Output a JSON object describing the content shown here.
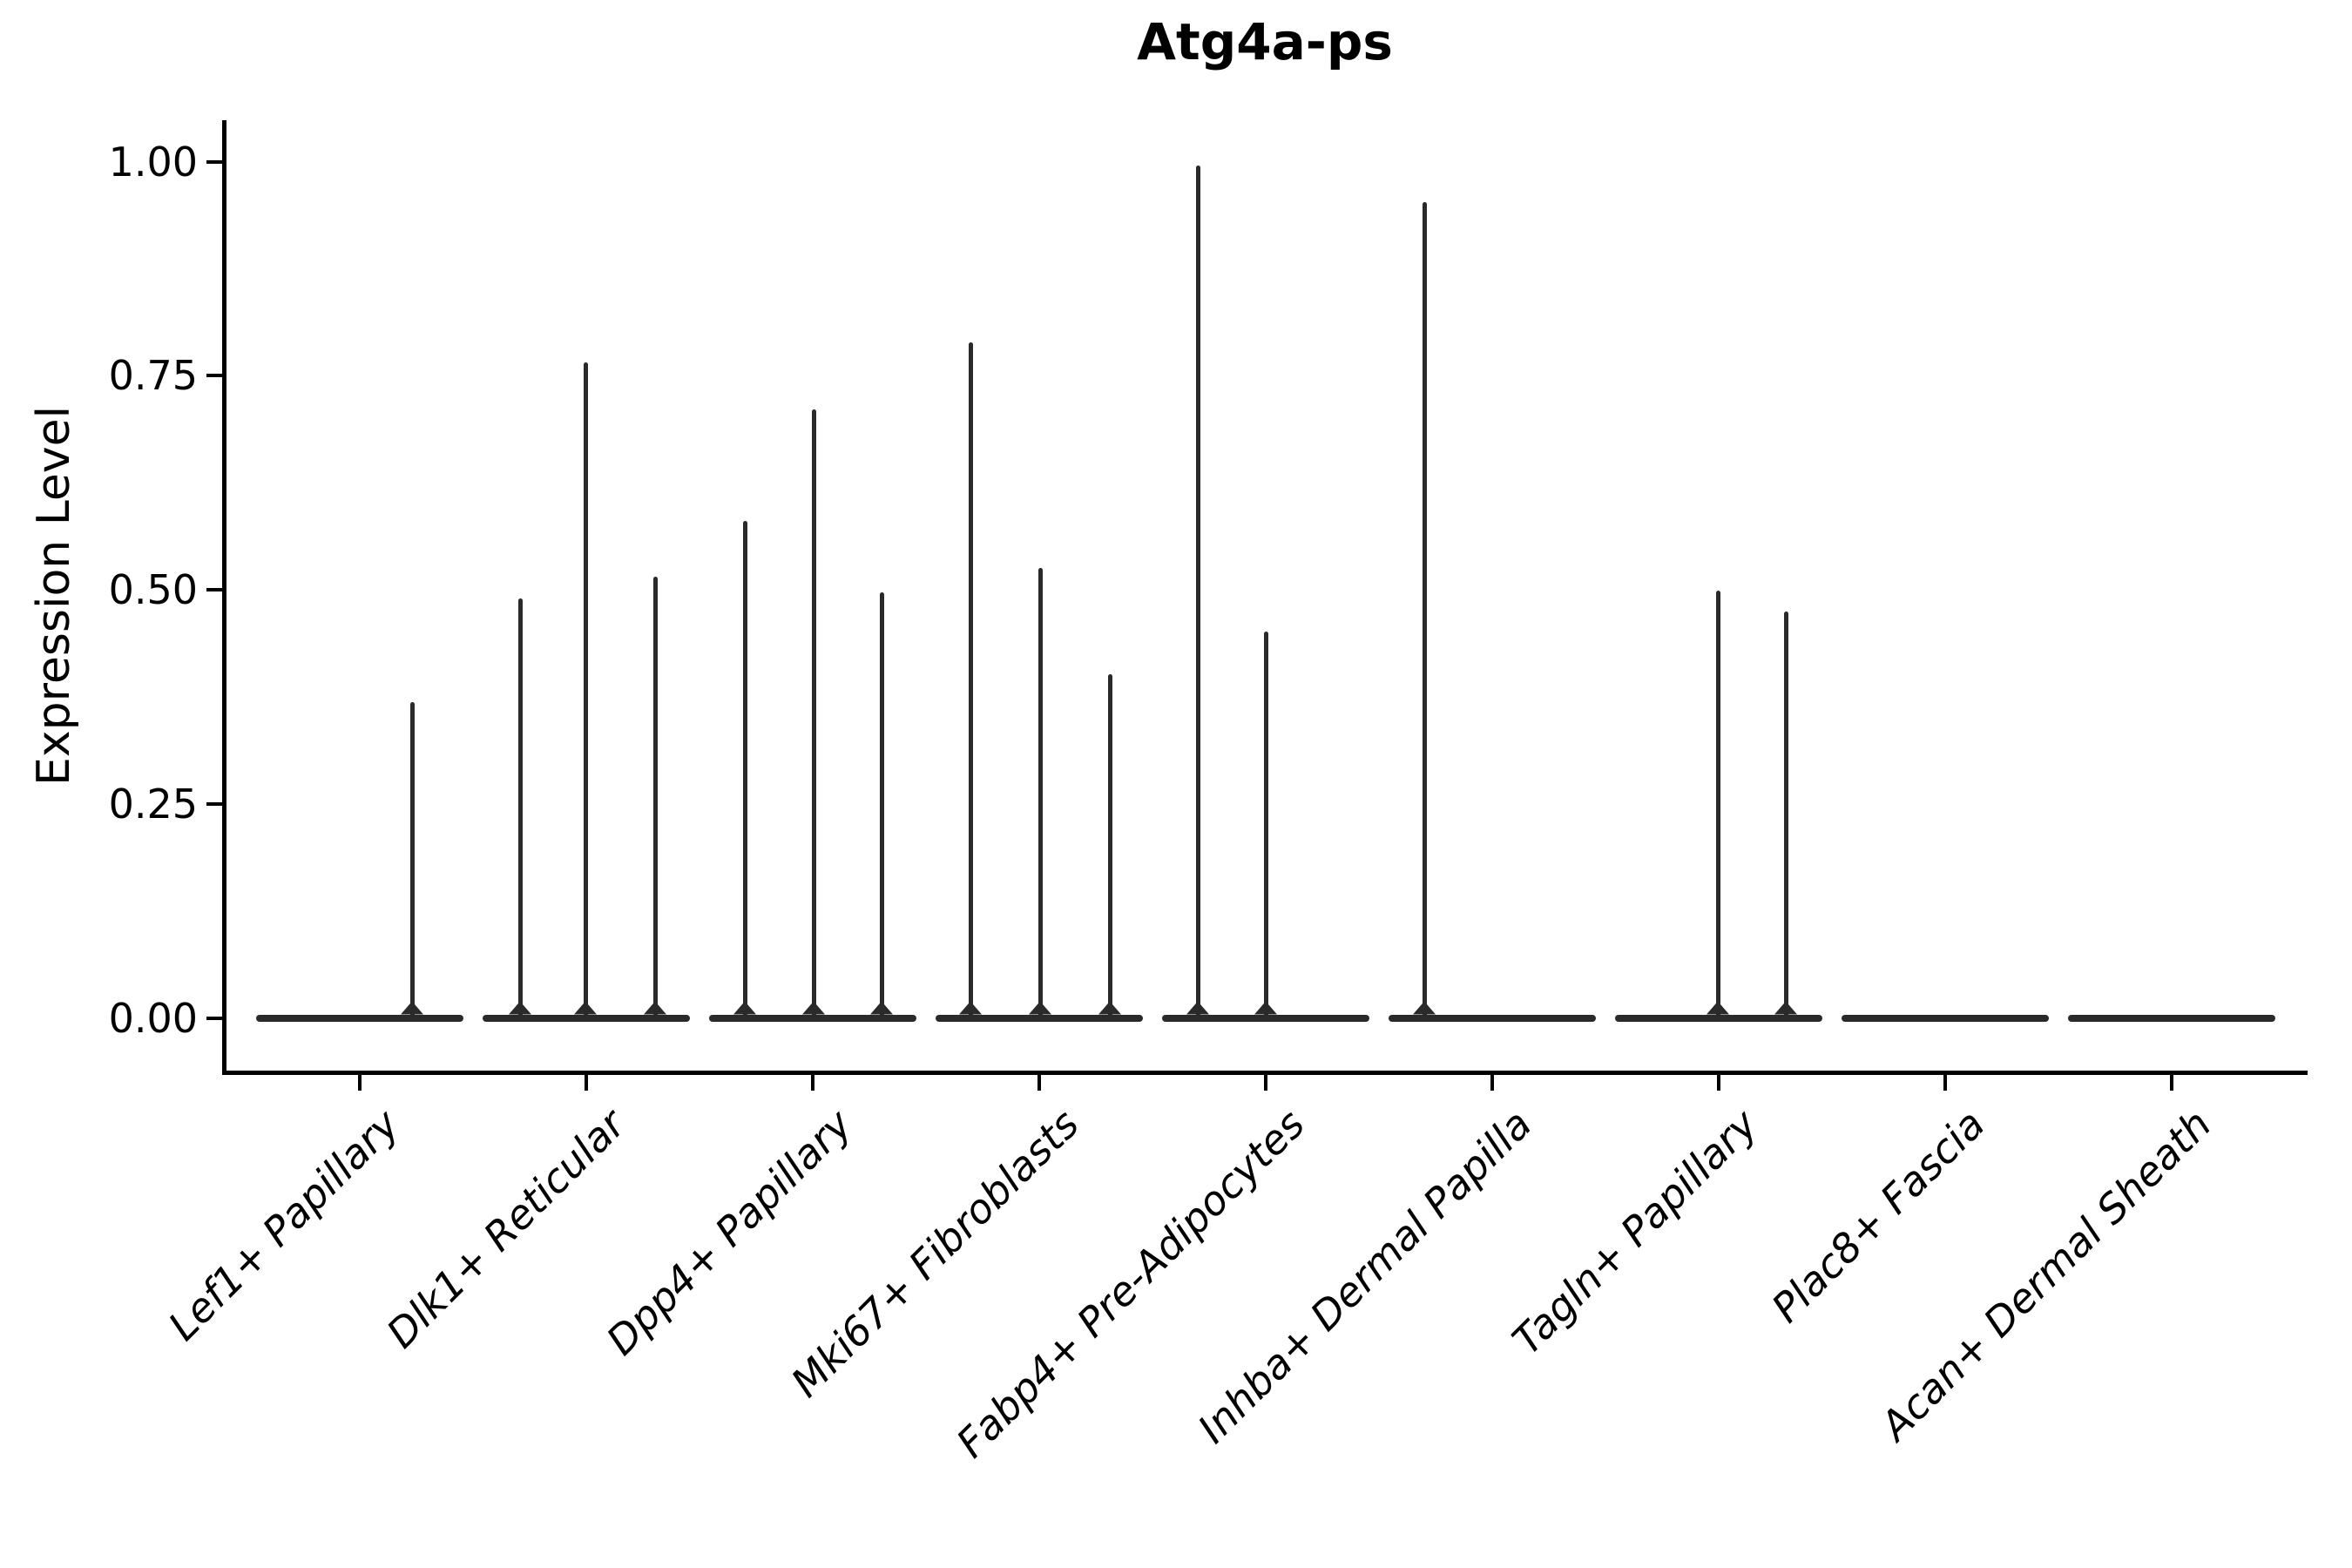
{
  "figure": {
    "title": "Atg4a-ps",
    "y_axis_label": "Expression Level"
  },
  "style": {
    "mark_color": "#2a2a2a",
    "axis_color": "#000000",
    "background": "#ffffff",
    "x_tick_labels_italic": true,
    "x_tick_label_rotation_deg": 45
  },
  "chart_data": {
    "type": "violin",
    "title": "Atg4a-ps",
    "xlabel": "",
    "ylabel": "Expression Level",
    "ylim": [
      0,
      1.05
    ],
    "grid": false,
    "legend": "none",
    "yticks": [
      {
        "value": 1.0,
        "label": "1.00"
      },
      {
        "value": 0.75,
        "label": "0.75"
      },
      {
        "value": 0.5,
        "label": "0.50"
      },
      {
        "value": 0.25,
        "label": "0.25"
      },
      {
        "value": 0.0,
        "label": "0.00"
      }
    ],
    "categories": [
      "Lef1+ Papillary",
      "Dlk1+ Reticular",
      "Dpp4+ Papillary",
      "Mki67+ Fibroblasts",
      "Fabp4+ Pre-Adipocytes",
      "Inhba+ Dermal Papilla",
      "Tagln+ Papillary",
      "Plac8+ Fascia",
      "Acan+ Dermal Sheath"
    ],
    "violins": [
      {
        "category": "Lef1+ Papillary",
        "baseline_value": 0,
        "spikes": [
          {
            "dx": 60,
            "max": 0.369
          }
        ]
      },
      {
        "category": "Dlk1+ Reticular",
        "baseline_value": 0,
        "spikes": [
          {
            "dx": -76,
            "max": 0.49
          },
          {
            "dx": -1,
            "max": 0.766
          },
          {
            "dx": 79,
            "max": 0.515
          }
        ]
      },
      {
        "category": "Dpp4+ Papillary",
        "baseline_value": 0,
        "spikes": [
          {
            "dx": -78,
            "max": 0.581
          },
          {
            "dx": 1,
            "max": 0.711
          },
          {
            "dx": 79,
            "max": 0.497
          }
        ]
      },
      {
        "category": "Mki67+ Fibroblasts",
        "baseline_value": 0,
        "spikes": [
          {
            "dx": -79,
            "max": 0.789
          },
          {
            "dx": 1,
            "max": 0.526
          },
          {
            "dx": 81,
            "max": 0.401
          }
        ]
      },
      {
        "category": "Fabp4+ Pre-Adipocytes",
        "baseline_value": 0,
        "spikes": [
          {
            "dx": -78,
            "max": 0.996
          },
          {
            "dx": 0,
            "max": 0.451
          }
        ]
      },
      {
        "category": "Inhba+ Dermal Papilla",
        "baseline_value": 0,
        "spikes": [
          {
            "dx": -78,
            "max": 0.953
          }
        ]
      },
      {
        "category": "Tagln+ Papillary",
        "baseline_value": 0,
        "spikes": [
          {
            "dx": -1,
            "max": 0.499
          },
          {
            "dx": 77,
            "max": 0.475
          }
        ]
      },
      {
        "category": "Plac8+ Fascia",
        "baseline_value": 0,
        "spikes": []
      },
      {
        "category": "Acan+ Dermal Sheath",
        "baseline_value": 0,
        "spikes": []
      }
    ]
  }
}
